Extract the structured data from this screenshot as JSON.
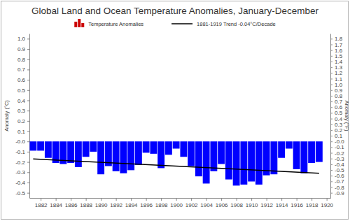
{
  "chart_data": {
    "type": "bar",
    "title": "Global Land and Ocean Temperature Anomalies, January-December",
    "x": [
      1881,
      1882,
      1883,
      1884,
      1885,
      1886,
      1887,
      1888,
      1889,
      1890,
      1891,
      1892,
      1893,
      1894,
      1895,
      1896,
      1897,
      1898,
      1899,
      1900,
      1901,
      1902,
      1903,
      1904,
      1905,
      1906,
      1907,
      1908,
      1909,
      1910,
      1911,
      1912,
      1913,
      1914,
      1915,
      1916,
      1917,
      1918,
      1919
    ],
    "xlim": [
      1880.5,
      1920.5
    ],
    "xticks": [
      1882,
      1884,
      1886,
      1888,
      1890,
      1892,
      1894,
      1896,
      1898,
      1900,
      1902,
      1904,
      1906,
      1908,
      1910,
      1912,
      1914,
      1916,
      1918,
      1920
    ],
    "ylim": [
      -0.55,
      1.05
    ],
    "yticks": [
      -0.5,
      -0.4,
      -0.3,
      -0.2,
      -0.1,
      {
        "value": 0,
        "label": "-0.0"
      },
      0.1,
      0.2,
      0.3,
      0.4,
      0.5,
      0.6,
      0.7,
      0.8,
      0.9,
      {
        "value": 1,
        "label": "1.0"
      }
    ],
    "y_label": "Anomaly (°C)",
    "y2lim": [
      -0.99,
      1.89
    ],
    "y2ticks": [
      -0.9,
      -0.8,
      -0.7,
      -0.6,
      -0.5,
      -0.4,
      -0.3,
      -0.2,
      -0.1,
      {
        "value": 0,
        "label": "-0.0"
      },
      0.1,
      0.2,
      0.3,
      0.4,
      0.5,
      0.6,
      0.7,
      0.8,
      0.9,
      {
        "value": 1,
        "label": "1.0"
      },
      1.1,
      1.2,
      1.3,
      1.4,
      1.5,
      1.6,
      1.7,
      1.8
    ],
    "y2_label": "Anomaly (°F)",
    "legend": "top",
    "series": [
      {
        "name": "Temperature Anomalies",
        "type": "bar",
        "color": "#cc0000",
        "colors": [
          "#0000ff",
          "#0000ff",
          "#0000ff",
          "#0000ff",
          "#0000ff",
          "#0000ff",
          "#0000ff",
          "#0000ff",
          "#0000ff",
          "#0000ff",
          "#0000ff",
          "#0000ff",
          "#0000ff",
          "#0000ff",
          "#0000ff",
          "#0000ff",
          "#0000ff",
          "#0000ff",
          "#0000ff",
          "#0000ff",
          "#0000ff",
          "#0000ff",
          "#0000ff",
          "#0000ff",
          "#0000ff",
          "#0000ff",
          "#0000ff",
          "#0000ff",
          "#0000ff",
          "#0000ff",
          "#0000ff",
          "#0000ff",
          "#0000ff",
          "#0000ff",
          "#0000ff",
          "#0000ff",
          "#0000ff",
          "#0000ff",
          "#0000ff"
        ],
        "values": [
          -0.09,
          -0.09,
          -0.16,
          -0.21,
          -0.22,
          -0.21,
          -0.25,
          -0.15,
          -0.1,
          -0.32,
          -0.24,
          -0.29,
          -0.31,
          -0.28,
          -0.23,
          -0.11,
          -0.12,
          -0.26,
          -0.13,
          -0.07,
          -0.15,
          -0.24,
          -0.34,
          -0.41,
          -0.29,
          -0.22,
          -0.37,
          -0.43,
          -0.42,
          -0.39,
          -0.42,
          -0.33,
          -0.32,
          -0.16,
          -0.07,
          -0.27,
          -0.31,
          -0.21,
          -0.2
        ]
      },
      {
        "name": "1881-1919 Trend -0.04°C/Decade",
        "type": "line",
        "color": "#000000",
        "x": [
          1881,
          1919
        ],
        "values": [
          -0.17,
          -0.31
        ]
      }
    ]
  }
}
